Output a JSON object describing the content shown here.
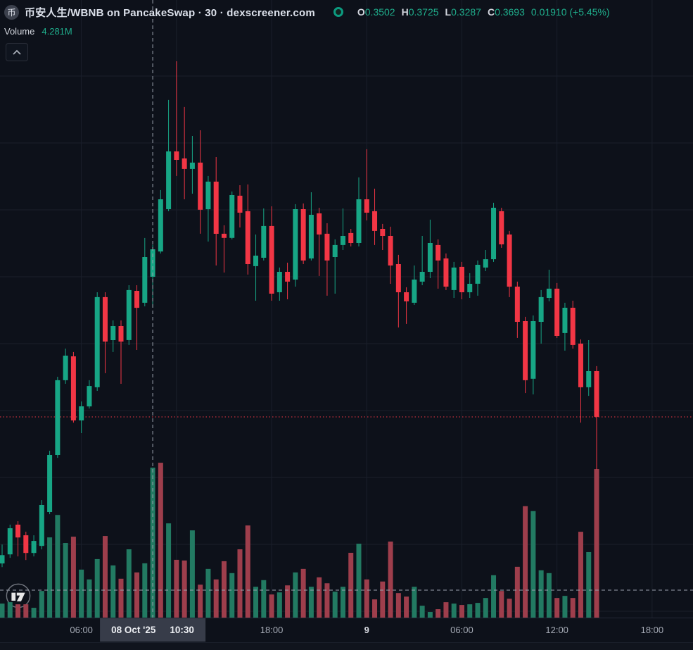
{
  "header": {
    "symbol_icon_text": "币",
    "title": "币安人生/WBNB on PancakeSwap · 30 · dexscreener.com",
    "ohlc": {
      "labels": [
        "O",
        "H",
        "L",
        "C"
      ],
      "open": "0.3502",
      "high": "0.3725",
      "low": "0.3287",
      "close": "0.3693",
      "change": "0.01910 (+5.45%)"
    },
    "volume_label": "Volume",
    "volume_value": "4.281M"
  },
  "axis": {
    "ticks": [
      {
        "label": "06:00",
        "index": 10,
        "major": false
      },
      {
        "label": "18:00",
        "index": 34,
        "major": false
      },
      {
        "label": "9",
        "index": 46,
        "major": true
      },
      {
        "label": "06:00",
        "index": 58,
        "major": false
      },
      {
        "label": "12:00",
        "index": 70,
        "major": false
      },
      {
        "label": "18:00",
        "index": 82,
        "major": false
      }
    ],
    "crosshair_date": "08 Oct '25",
    "crosshair_time": "10:30"
  },
  "price_line": {
    "price": 0.2527
  },
  "colors": {
    "background": "#0d111a",
    "up": "#17a685",
    "down": "#f23645",
    "vol_up": "#227a62",
    "vol_down": "#9e3e4c",
    "grid": "#1a1f2b",
    "crosshair": "#9ba1ad",
    "price_line": "#f23645",
    "axis_text": "#a5aab5",
    "title_text": "#dbe0ea",
    "value_text": "#1fae8c",
    "label_box_bg": "#373c49",
    "logo": "#7c8089"
  },
  "chart_data": {
    "type": "candlestick_with_volume",
    "symbol": "币安人生/WBNB",
    "exchange": "PancakeSwap",
    "interval_minutes": 30,
    "source_note": "dexscreener.com",
    "start_time": "08 Oct '25 01:00",
    "hovered_candle_index": 19,
    "hovered_candle": {
      "open": 0.3502,
      "high": 0.3725,
      "low": 0.3287,
      "close": 0.3693,
      "volume_label": "4.281M"
    },
    "price_range_visible": [
      0.115,
      0.505
    ],
    "volume_unit": "M",
    "legend_position": "top-left",
    "grid": true,
    "candles": [
      [
        0.1507,
        0.1639,
        0.1482,
        0.1565,
        0.4
      ],
      [
        0.157,
        0.1777,
        0.1546,
        0.1752,
        0.44
      ],
      [
        0.1777,
        0.1801,
        0.1556,
        0.1688,
        0.38
      ],
      [
        0.1703,
        0.1728,
        0.1531,
        0.158,
        0.38
      ],
      [
        0.158,
        0.1703,
        0.1556,
        0.1664,
        0.28
      ],
      [
        0.1629,
        0.1948,
        0.1605,
        0.1914,
        0.76
      ],
      [
        0.1865,
        0.2291,
        0.185,
        0.2262,
        2.29
      ],
      [
        0.2262,
        0.2806,
        0.2242,
        0.2782,
        2.93
      ],
      [
        0.2782,
        0.3002,
        0.2757,
        0.2953,
        2.13
      ],
      [
        0.2948,
        0.2978,
        0.2487,
        0.2502,
        2.31
      ],
      [
        0.2502,
        0.2634,
        0.2414,
        0.26,
        1.37
      ],
      [
        0.26,
        0.2782,
        0.2585,
        0.2742,
        1.09
      ],
      [
        0.2733,
        0.3394,
        0.2708,
        0.336,
        1.67
      ],
      [
        0.336,
        0.3394,
        0.2831,
        0.3051,
        2.33
      ],
      [
        0.3061,
        0.3198,
        0.2978,
        0.3159,
        1.49
      ],
      [
        0.3159,
        0.3198,
        0.2757,
        0.3051,
        1.11
      ],
      [
        0.3061,
        0.3443,
        0.3027,
        0.3409,
        1.95
      ],
      [
        0.3404,
        0.3443,
        0.2992,
        0.3286,
        1.29
      ],
      [
        0.3321,
        0.3772,
        0.3296,
        0.3639,
        1.55
      ],
      [
        0.3502,
        0.3725,
        0.3287,
        0.3693,
        4.281
      ],
      [
        0.3678,
        0.4105,
        0.3664,
        0.4041,
        4.42
      ],
      [
        0.3972,
        0.4732,
        0.3958,
        0.4374,
        2.69
      ],
      [
        0.4374,
        0.5001,
        0.4203,
        0.4315,
        1.65
      ],
      [
        0.4325,
        0.4683,
        0.4041,
        0.4252,
        1.63
      ],
      [
        0.4252,
        0.4482,
        0.408,
        0.4296,
        2.49
      ],
      [
        0.4296,
        0.4521,
        0.3801,
        0.3968,
        0.94
      ],
      [
        0.3972,
        0.4203,
        0.3747,
        0.4164,
        1.39
      ],
      [
        0.4164,
        0.4335,
        0.358,
        0.3801,
        1.09
      ],
      [
        0.3801,
        0.386,
        0.3531,
        0.3772,
        1.61
      ],
      [
        0.3772,
        0.4095,
        0.3762,
        0.407,
        1.27
      ],
      [
        0.4066,
        0.4139,
        0.3845,
        0.3948,
        1.95
      ],
      [
        0.3958,
        0.4144,
        0.3517,
        0.359,
        2.63
      ],
      [
        0.3576,
        0.3796,
        0.3335,
        0.3649,
        0.88
      ],
      [
        0.3634,
        0.3977,
        0.3615,
        0.3855,
        1.07
      ],
      [
        0.3855,
        0.3992,
        0.3335,
        0.3384,
        0.66
      ],
      [
        0.3394,
        0.3566,
        0.3335,
        0.3536,
        0.72
      ],
      [
        0.3536,
        0.36,
        0.3345,
        0.3468,
        0.92
      ],
      [
        0.3482,
        0.4007,
        0.3433,
        0.3972,
        1.29
      ],
      [
        0.3972,
        0.4012,
        0.359,
        0.3615,
        1.39
      ],
      [
        0.3629,
        0.409,
        0.3615,
        0.3933,
        0.88
      ],
      [
        0.3943,
        0.3982,
        0.3507,
        0.3796,
        1.15
      ],
      [
        0.3801,
        0.3874,
        0.337,
        0.3615,
        0.98
      ],
      [
        0.3639,
        0.3762,
        0.3384,
        0.3723,
        0.74
      ],
      [
        0.3723,
        0.3977,
        0.3688,
        0.3786,
        0.88
      ],
      [
        0.3806,
        0.3835,
        0.3713,
        0.3737,
        1.85
      ],
      [
        0.3737,
        0.4193,
        0.3713,
        0.4041,
        2.11
      ],
      [
        0.4041,
        0.4389,
        0.3894,
        0.3948,
        1.09
      ],
      [
        0.3958,
        0.4115,
        0.3723,
        0.3821,
        0.52
      ],
      [
        0.3835,
        0.387,
        0.3688,
        0.3786,
        1.03
      ],
      [
        0.3786,
        0.385,
        0.3453,
        0.358,
        2.17
      ],
      [
        0.359,
        0.3654,
        0.3149,
        0.3394,
        0.7
      ],
      [
        0.3394,
        0.3429,
        0.3174,
        0.3331,
        0.6
      ],
      [
        0.3321,
        0.358,
        0.3306,
        0.3482,
        0.88
      ],
      [
        0.3468,
        0.3786,
        0.3443,
        0.3536,
        0.34
      ],
      [
        0.3536,
        0.3899,
        0.3492,
        0.3737,
        0.16
      ],
      [
        0.3723,
        0.3762,
        0.3419,
        0.3615,
        0.24
      ],
      [
        0.3629,
        0.3664,
        0.3409,
        0.3433,
        0.44
      ],
      [
        0.3409,
        0.3605,
        0.3355,
        0.3566,
        0.4
      ],
      [
        0.3571,
        0.3605,
        0.3345,
        0.3394,
        0.36
      ],
      [
        0.3394,
        0.3527,
        0.3355,
        0.3453,
        0.38
      ],
      [
        0.3453,
        0.3615,
        0.337,
        0.3585,
        0.42
      ],
      [
        0.3566,
        0.3688,
        0.3541,
        0.3624,
        0.56
      ],
      [
        0.3624,
        0.4017,
        0.3605,
        0.3982,
        1.21
      ],
      [
        0.3958,
        0.3982,
        0.3703,
        0.3727,
        0.76
      ],
      [
        0.3796,
        0.3821,
        0.336,
        0.3433,
        0.54
      ],
      [
        0.3433,
        0.3468,
        0.3076,
        0.3188,
        1.45
      ],
      [
        0.3193,
        0.3223,
        0.2693,
        0.2782,
        3.18
      ],
      [
        0.2792,
        0.3233,
        0.2683,
        0.3193,
        3.04
      ],
      [
        0.3188,
        0.3409,
        0.3037,
        0.336,
        1.35
      ],
      [
        0.3355,
        0.3551,
        0.3331,
        0.3419,
        1.27
      ],
      [
        0.3419,
        0.3458,
        0.3076,
        0.309,
        0.56
      ],
      [
        0.311,
        0.3321,
        0.2988,
        0.3286,
        0.62
      ],
      [
        0.3286,
        0.3335,
        0.3002,
        0.3027,
        0.56
      ],
      [
        0.3037,
        0.3066,
        0.2487,
        0.2733,
        2.45
      ],
      [
        0.2733,
        0.3061,
        0.2673,
        0.2845,
        1.87
      ],
      [
        0.2845,
        0.288,
        0.2159,
        0.2527,
        4.24
      ]
    ],
    "volume_color_overrides": {
      "20": "down"
    }
  }
}
